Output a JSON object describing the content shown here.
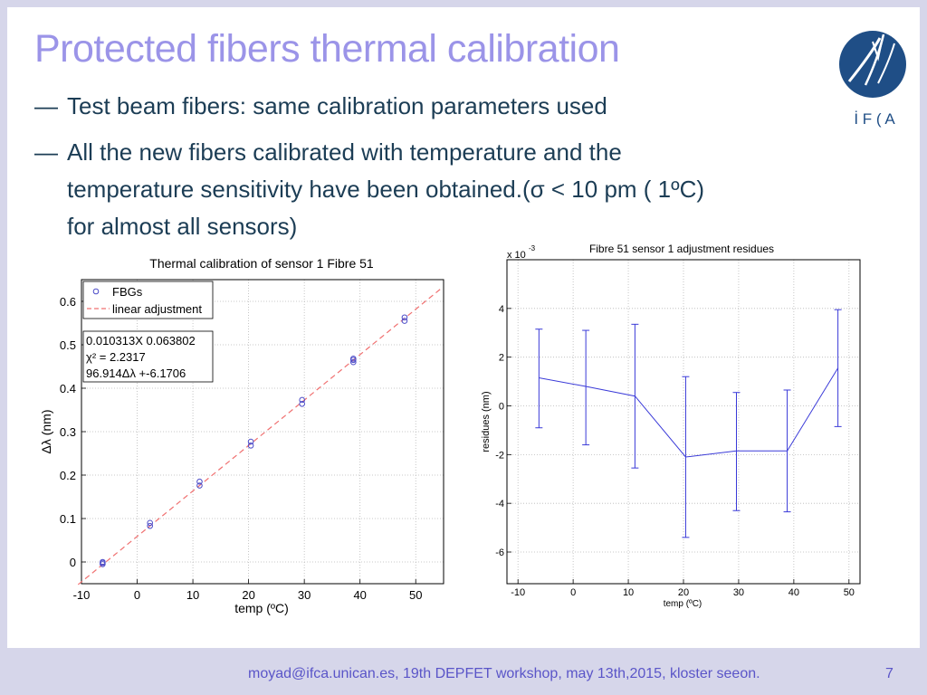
{
  "slide": {
    "title": "Protected fibers thermal calibration",
    "bullets": [
      {
        "dash": "—",
        "lines": [
          "Test beam fibers: same calibration parameters used"
        ]
      },
      {
        "dash": "—",
        "lines": [
          "All the new fibers calibrated with temperature and the",
          "temperature sensitivity have been obtained.(σ < 10 pm ( 1ºC)",
          "for almost all sensors)"
        ]
      }
    ],
    "logo_text": "İ F ( A",
    "footer": "moyad@ifca.unican.es, 19th DEPFET workshop, may 13th,2015, kloster seeon.",
    "page_number": "7"
  },
  "chart_data": [
    {
      "type": "scatter",
      "title": "Thermal calibration of sensor 1 Fibre 51",
      "xlabel": "temp (ºC)",
      "ylabel": "Δλ (nm)",
      "xlim": [
        -10,
        55
      ],
      "ylim": [
        -0.05,
        0.65
      ],
      "xticks": [
        "-10",
        "0",
        "10",
        "20",
        "30",
        "40",
        "50"
      ],
      "yticks": [
        "0",
        "0.1",
        "0.2",
        "0.3",
        "0.4",
        "0.5",
        "0.6"
      ],
      "grid": true,
      "legend": {
        "position": "top-left",
        "entries": [
          "FBGs",
          "linear adjustment"
        ]
      },
      "annotation": [
        "0.010313X 0.063802",
        "χ² = 2.2317",
        "96.914Δλ +-6.1706"
      ],
      "series": [
        {
          "name": "FBGs",
          "kind": "points",
          "color": "#4b4bc8",
          "x": [
            -6.2,
            -6.2,
            -6.2,
            2.3,
            2.3,
            11.2,
            11.2,
            20.4,
            20.4,
            29.6,
            29.6,
            38.8,
            38.8,
            38.8,
            48.0,
            48.0
          ],
          "y": [
            0.0,
            -0.005,
            -0.002,
            0.09,
            0.083,
            0.185,
            0.176,
            0.277,
            0.268,
            0.373,
            0.364,
            0.468,
            0.46,
            0.465,
            0.563,
            0.555
          ]
        },
        {
          "name": "linear adjustment",
          "kind": "line",
          "color": "#f07070",
          "x": [
            -10.6,
            54.6
          ],
          "y": [
            -0.052,
            0.63
          ]
        }
      ]
    },
    {
      "type": "line",
      "title": "Fibre 51 sensor 1 adjustment residues",
      "xlabel": "temp (ºC)",
      "ylabel": "residues (nm)",
      "multiplier": "x 10",
      "multiplier_exp": "-3",
      "xlim": [
        -12,
        52
      ],
      "ylim": [
        -7.3,
        6
      ],
      "xticks": [
        "-10",
        "0",
        "10",
        "20",
        "30",
        "40",
        "50"
      ],
      "yticks": [
        "4",
        "2",
        "0",
        "-2",
        "-4",
        "-6"
      ],
      "grid": true,
      "series": [
        {
          "name": "",
          "color": "#3a3ad8",
          "x": [
            -6.2,
            2.3,
            11.2,
            20.4,
            29.6,
            38.8,
            48.0
          ],
          "y": [
            1.15,
            0.8,
            0.4,
            -2.1,
            -1.85,
            -1.85,
            1.55
          ],
          "err_low": [
            -0.9,
            -1.6,
            -2.55,
            -5.4,
            -4.3,
            -4.35,
            -0.85
          ],
          "err_high": [
            3.15,
            3.1,
            3.35,
            1.2,
            0.55,
            0.65,
            3.95
          ]
        }
      ]
    }
  ]
}
